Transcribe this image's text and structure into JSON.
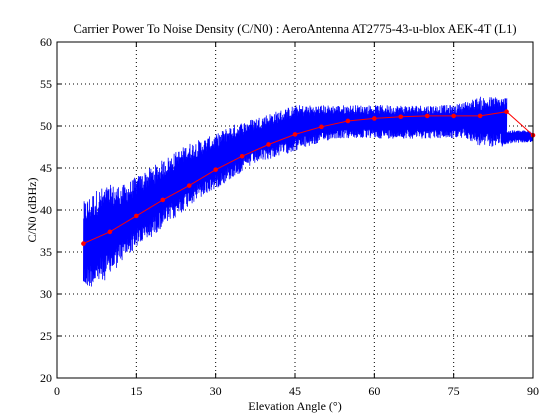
{
  "chart_data": {
    "type": "line",
    "title": "Carrier Power To Noise Density (C/N0) : AeroAntenna AT2775-43-u-blox AEK-4T (L1)",
    "xlabel": "Elevation Angle (°)",
    "ylabel": "C/N0 (dBHz)",
    "xlim": [
      0,
      90
    ],
    "ylim": [
      20,
      60
    ],
    "xticks": [
      0,
      15,
      30,
      45,
      60,
      75,
      90
    ],
    "yticks": [
      20,
      25,
      30,
      35,
      40,
      45,
      50,
      55,
      60
    ],
    "grid": true,
    "legend": "none",
    "series": [
      {
        "style": "raw-band",
        "color": "#0000ff",
        "x": [
          5,
          7.5,
          10,
          12.5,
          15,
          17.5,
          20,
          22.5,
          25,
          27.5,
          30,
          32.5,
          35,
          37.5,
          40,
          42.5,
          45,
          47.5,
          50,
          52.5,
          55,
          57.5,
          60,
          62.5,
          65,
          67.5,
          70,
          72.5,
          75,
          77.5,
          80,
          82.5,
          85
        ],
        "lower": [
          30.5,
          31,
          32,
          34,
          35.5,
          36.5,
          38,
          39,
          40.5,
          41.5,
          42.5,
          43.5,
          44.5,
          45.5,
          46,
          46.5,
          47,
          47.5,
          48,
          48.5,
          48.5,
          48.5,
          48.5,
          48.5,
          48.5,
          48.5,
          48.5,
          48.5,
          48.5,
          48.5,
          47.5,
          47.5,
          48
        ],
        "upper": [
          41,
          42.5,
          43,
          43,
          44,
          45,
          46,
          47,
          48,
          48.5,
          49,
          50,
          50.5,
          51,
          51.5,
          52,
          52.5,
          52.5,
          52.5,
          52.5,
          52.5,
          52.5,
          52.5,
          52.5,
          52.5,
          52.5,
          52.5,
          52.5,
          52.5,
          53,
          53.5,
          53.5,
          53.5
        ]
      },
      {
        "style": "raw-tail",
        "color": "#0000ff",
        "x": [
          84,
          86,
          88,
          90
        ],
        "lower": [
          47.5,
          48,
          48,
          48
        ],
        "upper": [
          49.5,
          49.5,
          49.5,
          49.5
        ]
      },
      {
        "style": "mean-line",
        "color": "#ff0000",
        "x": [
          5,
          10,
          15,
          20,
          25,
          30,
          35,
          40,
          45,
          50,
          55,
          60,
          65,
          70,
          75,
          80,
          85,
          90
        ],
        "y": [
          36.0,
          37.4,
          39.3,
          41.2,
          42.9,
          44.8,
          46.4,
          47.8,
          49.0,
          49.9,
          50.6,
          50.9,
          51.1,
          51.2,
          51.2,
          51.2,
          51.7,
          48.9
        ]
      }
    ]
  }
}
